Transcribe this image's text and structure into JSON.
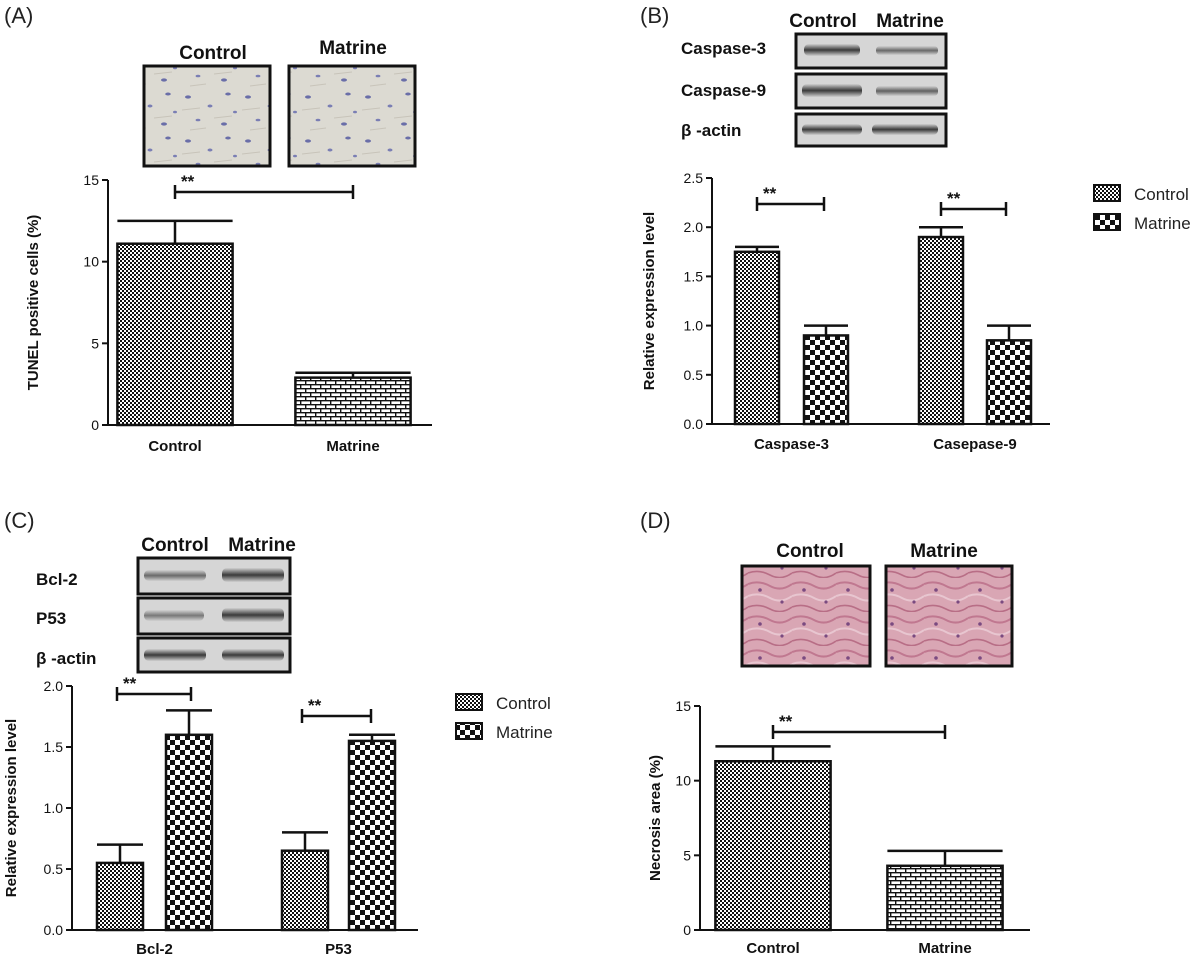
{
  "panels": {
    "A": {
      "letter": "(A)",
      "image_labels": [
        "Control",
        "Matrine"
      ],
      "image_descriptions": [
        "TUNEL stain control micrograph",
        "TUNEL stain matrine micrograph"
      ]
    },
    "B": {
      "letter": "(B)",
      "lane_labels": [
        "Control",
        "Matrine"
      ],
      "blot_rows": [
        "Caspase-3",
        "Caspase-9",
        "β -actin"
      ]
    },
    "C": {
      "letter": "(C)",
      "lane_labels": [
        "Control",
        "Matrine"
      ],
      "blot_rows": [
        "Bcl-2",
        "P53",
        "β -actin"
      ]
    },
    "D": {
      "letter": "(D)",
      "image_labels": [
        "Control",
        "Matrine"
      ],
      "image_descriptions": [
        "H&E stain control micrograph",
        "H&E stain matrine micrograph"
      ]
    }
  },
  "colors": {
    "axis": "#111111",
    "bar_stroke": "#111111",
    "checker_dark": "#111111",
    "checker_light": "#ffffff"
  },
  "chart_data": [
    {
      "id": "A",
      "type": "bar",
      "categories": [
        "Control",
        "Matrine"
      ],
      "values": [
        11.1,
        2.9
      ],
      "errors": [
        1.4,
        0.3
      ],
      "patterns": [
        "fine-checker",
        "brick"
      ],
      "title": "",
      "xlabel": "",
      "ylabel": "TUNEL positive cells (%)",
      "ylim": [
        0,
        15
      ],
      "yticks": [
        "0",
        "5",
        "10",
        "15"
      ],
      "significance": [
        {
          "label": "**",
          "from": "Control",
          "to": "Matrine"
        }
      ],
      "grid": false
    },
    {
      "id": "B",
      "type": "bar",
      "categories": [
        "Caspase-3",
        "Casepase-9"
      ],
      "series": [
        {
          "name": "Control",
          "values": [
            1.75,
            1.9
          ],
          "errors": [
            0.05,
            0.1
          ],
          "pattern": "fine-checker"
        },
        {
          "name": "Matrine",
          "values": [
            0.9,
            0.85
          ],
          "errors": [
            0.1,
            0.15
          ],
          "pattern": "coarse-checker"
        }
      ],
      "title": "",
      "xlabel": "",
      "ylabel": "Relative expression level",
      "ylim": [
        0,
        2.5
      ],
      "yticks": [
        "0.0",
        "0.5",
        "1.0",
        "1.5",
        "2.0",
        "2.5"
      ],
      "significance": [
        {
          "label": "**",
          "group": "Caspase-3"
        },
        {
          "label": "**",
          "group": "Casepase-9"
        }
      ],
      "legend": "right",
      "grid": false
    },
    {
      "id": "C",
      "type": "bar",
      "categories": [
        "Bcl-2",
        "P53"
      ],
      "series": [
        {
          "name": "Control",
          "values": [
            0.55,
            0.65
          ],
          "errors": [
            0.15,
            0.15
          ],
          "pattern": "fine-checker"
        },
        {
          "name": "Matrine",
          "values": [
            1.6,
            1.55
          ],
          "errors": [
            0.2,
            0.05
          ],
          "pattern": "coarse-checker"
        }
      ],
      "title": "",
      "xlabel": "",
      "ylabel": "Relative expression level",
      "ylim": [
        0,
        2.0
      ],
      "yticks": [
        "0.0",
        "0.5",
        "1.0",
        "1.5",
        "2.0"
      ],
      "significance": [
        {
          "label": "**",
          "group": "Bcl-2"
        },
        {
          "label": "**",
          "group": "P53"
        }
      ],
      "legend": "right",
      "grid": false
    },
    {
      "id": "D",
      "type": "bar",
      "categories": [
        "Control",
        "Matrine"
      ],
      "values": [
        11.3,
        4.3
      ],
      "errors": [
        1.0,
        1.0
      ],
      "patterns": [
        "fine-checker",
        "brick"
      ],
      "title": "",
      "xlabel": "",
      "ylabel": "Necrosis area (%)",
      "ylim": [
        0,
        15
      ],
      "yticks": [
        "0",
        "5",
        "10",
        "15"
      ],
      "significance": [
        {
          "label": "**",
          "from": "Control",
          "to": "Matrine"
        }
      ],
      "grid": false
    }
  ]
}
